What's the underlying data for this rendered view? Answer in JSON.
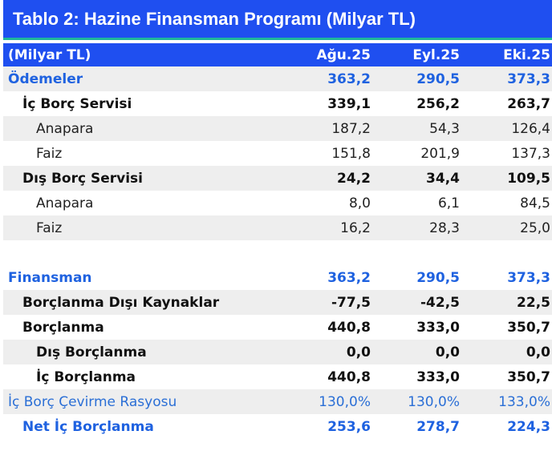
{
  "title": "Tablo 2: Hazine Finansman Programı (Milyar TL)",
  "header": {
    "label": "(Milyar TL)",
    "columns": [
      "Ağu.25",
      "Eyl.25",
      "Eki.25"
    ]
  },
  "rows": [
    {
      "label": "Ödemeler",
      "values": [
        "363,2",
        "290,5",
        "373,3"
      ]
    },
    {
      "label": "İç Borç Servisi",
      "values": [
        "339,1",
        "256,2",
        "263,7"
      ]
    },
    {
      "label": "Anapara",
      "values": [
        "187,2",
        "54,3",
        "126,4"
      ]
    },
    {
      "label": "Faiz",
      "values": [
        "151,8",
        "201,9",
        "137,3"
      ]
    },
    {
      "label": "Dış Borç Servisi",
      "values": [
        "24,2",
        "34,4",
        "109,5"
      ]
    },
    {
      "label": "Anapara",
      "values": [
        "8,0",
        "6,1",
        "84,5"
      ]
    },
    {
      "label": "Faiz",
      "values": [
        "16,2",
        "28,3",
        "25,0"
      ]
    },
    {
      "label": "Finansman",
      "values": [
        "363,2",
        "290,5",
        "373,3"
      ]
    },
    {
      "label": "Borçlanma Dışı Kaynaklar",
      "values": [
        "-77,5",
        "-42,5",
        "22,5"
      ]
    },
    {
      "label": "Borçlanma",
      "values": [
        "440,8",
        "333,0",
        "350,7"
      ]
    },
    {
      "label": "Dış Borçlanma",
      "values": [
        "0,0",
        "0,0",
        "0,0"
      ]
    },
    {
      "label": "İç Borçlanma",
      "values": [
        "440,8",
        "333,0",
        "350,7"
      ]
    },
    {
      "label": "İç Borç Çevirme Rasyosu",
      "values": [
        "130,0%",
        "130,0%",
        "133,0%"
      ]
    },
    {
      "label": "Net İç Borçlanma",
      "values": [
        "253,6",
        "278,7",
        "224,3"
      ]
    }
  ],
  "colors": {
    "header_bg": "#1f4ff0",
    "accent_rule": "#1fb79c",
    "section_text": "#1f62e0",
    "row_shade": "#eeeeee"
  }
}
